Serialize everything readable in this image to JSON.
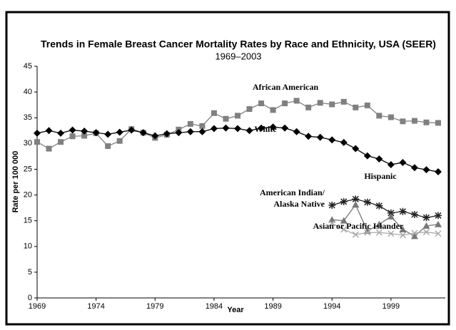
{
  "chart_data": {
    "type": "line",
    "title": "Trends in Female Breast Cancer Mortality Rates by Race and Ethnicity, USA (SEER)",
    "subtitle": "1969–2003",
    "x_label": "Year",
    "y_label": "Rate per 100 000",
    "x": [
      1969,
      1970,
      1971,
      1972,
      1973,
      1974,
      1975,
      1976,
      1977,
      1978,
      1979,
      1980,
      1981,
      1982,
      1983,
      1984,
      1985,
      1986,
      1987,
      1988,
      1989,
      1990,
      1991,
      1992,
      1993,
      1994,
      1995,
      1996,
      1997,
      1998,
      1999,
      2000,
      2001,
      2002,
      2003
    ],
    "xlim": [
      1969,
      2003
    ],
    "xticks": [
      1969,
      1974,
      1979,
      1984,
      1989,
      1994,
      1999
    ],
    "ylim": [
      0,
      45
    ],
    "yticks": [
      0,
      5,
      10,
      15,
      20,
      25,
      30,
      35,
      40,
      45
    ],
    "series": [
      {
        "name": "African American",
        "color": "#808080",
        "marker": "square",
        "values": [
          30.3,
          29.0,
          30.3,
          31.4,
          31.5,
          32.0,
          29.5,
          30.5,
          32.8,
          32.1,
          31.1,
          31.7,
          32.7,
          33.8,
          33.4,
          35.9,
          34.8,
          35.4,
          36.7,
          37.8,
          36.5,
          37.8,
          38.3,
          37.0,
          37.9,
          37.6,
          38.1,
          37.0,
          37.4,
          35.4,
          35.1,
          34.3,
          34.4,
          34.1,
          34.0
        ]
      },
      {
        "name": "White",
        "color": "#000000",
        "marker": "diamond",
        "values": [
          32.0,
          32.5,
          32.0,
          32.6,
          32.4,
          32.1,
          31.8,
          32.2,
          32.6,
          32.1,
          31.5,
          31.9,
          32.1,
          32.3,
          32.3,
          32.9,
          33.0,
          32.9,
          32.5,
          33.0,
          33.2,
          33.0,
          32.3,
          31.4,
          31.2,
          30.7,
          30.2,
          29.0,
          27.6,
          27.0,
          25.9,
          26.3,
          25.3,
          24.9,
          24.5
        ]
      },
      {
        "name": "Hispanic",
        "color": "#222222",
        "marker": "asterisk",
        "values": [
          null,
          null,
          null,
          null,
          null,
          null,
          null,
          null,
          null,
          null,
          null,
          null,
          null,
          null,
          null,
          null,
          null,
          null,
          null,
          null,
          null,
          null,
          null,
          null,
          null,
          18.0,
          18.7,
          19.2,
          18.6,
          17.9,
          16.5,
          16.8,
          16.2,
          15.6,
          16.0
        ]
      },
      {
        "name": "American Indian/ Alaska Native",
        "color": "#777777",
        "marker": "triangle",
        "values": [
          null,
          null,
          null,
          null,
          null,
          null,
          null,
          null,
          null,
          null,
          null,
          null,
          null,
          null,
          null,
          null,
          null,
          null,
          null,
          null,
          null,
          null,
          null,
          null,
          null,
          15.2,
          15.0,
          18.1,
          13.0,
          14.3,
          15.8,
          13.3,
          12.0,
          14.0,
          14.3
        ]
      },
      {
        "name": "Asian or Pacific Islander",
        "color": "#aaaaaa",
        "marker": "cross",
        "values": [
          null,
          null,
          null,
          null,
          null,
          null,
          null,
          null,
          null,
          null,
          null,
          null,
          null,
          null,
          null,
          null,
          null,
          null,
          null,
          null,
          null,
          null,
          null,
          null,
          null,
          14.5,
          13.3,
          12.3,
          12.7,
          12.7,
          12.5,
          12.2,
          12.6,
          12.8,
          12.5
        ]
      }
    ]
  }
}
